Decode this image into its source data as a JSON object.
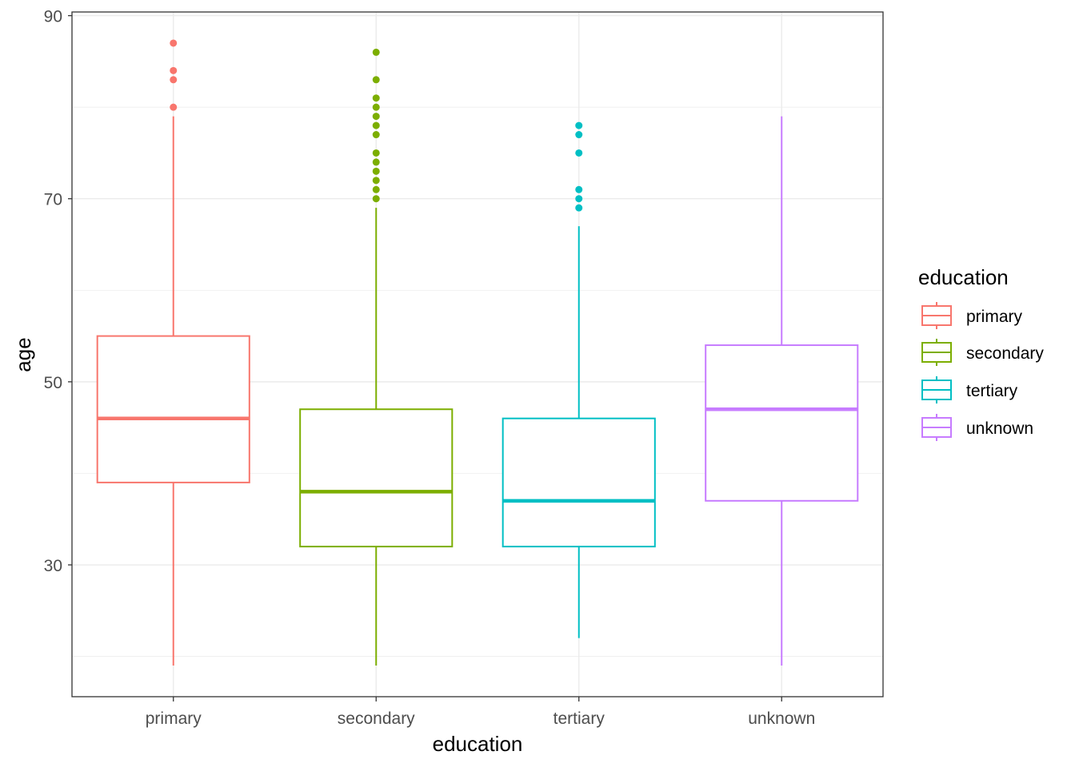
{
  "chart_data": {
    "type": "boxplot",
    "xlabel": "education",
    "ylabel": "age",
    "categories": [
      "primary",
      "secondary",
      "tertiary",
      "unknown"
    ],
    "ylim": [
      15.6,
      90.4
    ],
    "y_ticks": [
      30,
      50,
      70,
      90
    ],
    "grid": true,
    "colors": [
      "#F8766D",
      "#7CAE00",
      "#00BFC4",
      "#C77CFF"
    ],
    "boxes": [
      {
        "category": "primary",
        "lower_whisker": 19,
        "q1": 39,
        "median": 46,
        "q3": 55,
        "upper_whisker": 79,
        "outliers": [
          80,
          83,
          84,
          87
        ]
      },
      {
        "category": "secondary",
        "lower_whisker": 19,
        "q1": 32,
        "median": 38,
        "q3": 47,
        "upper_whisker": 69,
        "outliers": [
          70,
          71,
          72,
          73,
          74,
          75,
          77,
          78,
          79,
          80,
          81,
          83,
          86
        ]
      },
      {
        "category": "tertiary",
        "lower_whisker": 22,
        "q1": 32,
        "median": 37,
        "q3": 46,
        "upper_whisker": 67,
        "outliers": [
          69,
          70,
          71,
          75,
          77,
          78
        ]
      },
      {
        "category": "unknown",
        "lower_whisker": 19,
        "q1": 37,
        "median": 47,
        "q3": 54,
        "upper_whisker": 79,
        "outliers": []
      }
    ],
    "legend": {
      "title": "education",
      "position": "right",
      "entries": [
        "primary",
        "secondary",
        "tertiary",
        "unknown"
      ]
    }
  }
}
